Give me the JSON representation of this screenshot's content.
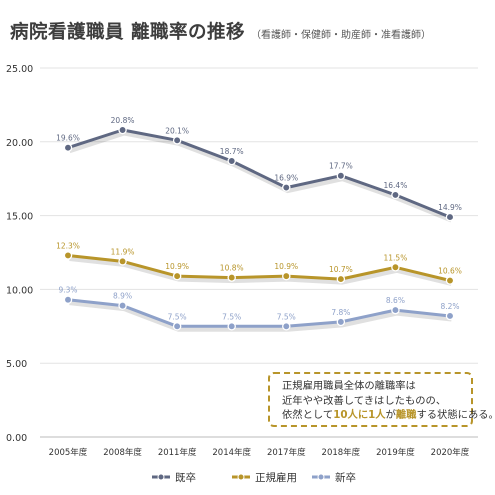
{
  "title": {
    "main": "病院看護職員 離職率の推移",
    "sub": "（看護師・保健師・助産師・准看護師）"
  },
  "callout": {
    "line1": "正規雇用職員全体の離職率は",
    "line2": "近年やや改善してきはしたものの、",
    "line3_pre": "依然として",
    "line3_hl1": "10人に1人",
    "line3_mid": "が",
    "line3_hl2": "離職",
    "line3_post": "する状態にある。"
  },
  "colors": {
    "kisotsu": "#5f6882",
    "seiki": "#b8952a",
    "shinsotsu": "#8ea1c9",
    "grid": "#e3e3e3",
    "axis_text": "#333333"
  },
  "chart_data": {
    "type": "line",
    "categories": [
      "2005年度",
      "2008年度",
      "2011年度",
      "2014年度",
      "2017年度",
      "2018年度",
      "2019年度",
      "2020年度"
    ],
    "ylim": [
      0,
      25
    ],
    "yticks": [
      "0.00",
      "5.00",
      "10.00",
      "15.00",
      "20.00",
      "25.00"
    ],
    "grid": true,
    "legend_position": "bottom",
    "series": [
      {
        "name": "既卒",
        "values": [
          19.6,
          20.8,
          20.1,
          18.7,
          16.9,
          17.7,
          16.4,
          14.9
        ],
        "labels": [
          "19.6%",
          "20.8%",
          "20.1%",
          "18.7%",
          "16.9%",
          "17.7%",
          "16.4%",
          "14.9%"
        ]
      },
      {
        "name": "正規雇用",
        "values": [
          12.3,
          11.9,
          10.9,
          10.8,
          10.9,
          10.7,
          11.5,
          10.6
        ],
        "labels": [
          "12.3%",
          "11.9%",
          "10.9%",
          "10.8%",
          "10.9%",
          "10.7%",
          "11.5%",
          "10.6%"
        ]
      },
      {
        "name": "新卒",
        "values": [
          9.3,
          8.9,
          7.5,
          7.5,
          7.5,
          7.8,
          8.6,
          8.2
        ],
        "labels": [
          "9.3%",
          "8.9%",
          "7.5%",
          "7.5%",
          "7.5%",
          "7.8%",
          "8.6%",
          "8.2%"
        ]
      }
    ]
  }
}
